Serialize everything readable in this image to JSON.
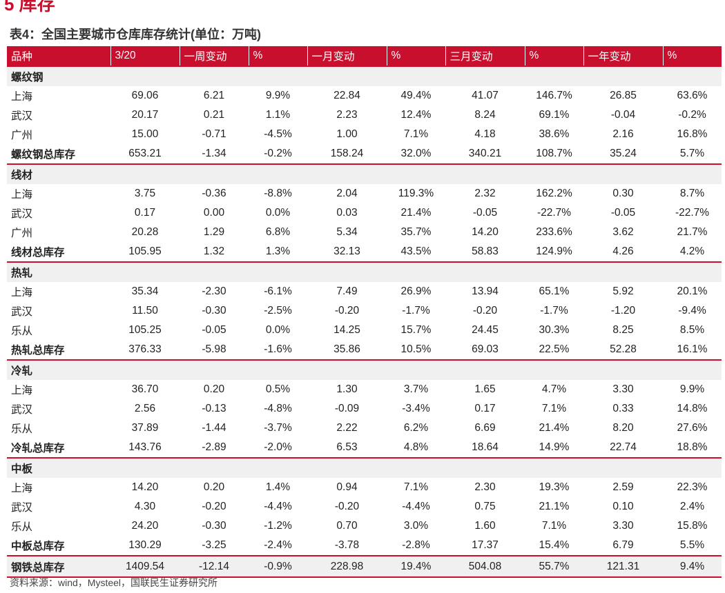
{
  "page": {
    "section_title": "5 库存",
    "caption": "表4：全国主要城市仓库库存统计(单位：万吨)",
    "source": "资料来源：wind，Mysteel，国联民生证券研究所"
  },
  "colors": {
    "accent": "#c8102e",
    "category_bg": "#f0f0f0"
  },
  "table": {
    "headers": [
      "品种",
      "3/20",
      "一周变动",
      "%",
      "一月变动",
      "%",
      "三月变动",
      "%",
      "一年变动",
      "%"
    ],
    "groups": [
      {
        "name": "螺纹钢",
        "rows": [
          [
            "上海",
            "69.06",
            "6.21",
            "9.9%",
            "22.84",
            "49.4%",
            "41.07",
            "146.7%",
            "26.85",
            "63.6%"
          ],
          [
            "武汉",
            "20.17",
            "0.21",
            "1.1%",
            "2.23",
            "12.4%",
            "8.24",
            "69.1%",
            "-0.04",
            "-0.2%"
          ],
          [
            "广州",
            "15.00",
            "-0.71",
            "-4.5%",
            "1.00",
            "7.1%",
            "4.18",
            "38.6%",
            "2.16",
            "16.8%"
          ]
        ],
        "total": [
          "螺纹钢总库存",
          "653.21",
          "-1.34",
          "-0.2%",
          "158.24",
          "32.0%",
          "340.21",
          "108.7%",
          "35.24",
          "5.7%"
        ]
      },
      {
        "name": "线材",
        "rows": [
          [
            "上海",
            "3.75",
            "-0.36",
            "-8.8%",
            "2.04",
            "119.3%",
            "2.32",
            "162.2%",
            "0.30",
            "8.7%"
          ],
          [
            "武汉",
            "0.17",
            "0.00",
            "0.0%",
            "0.03",
            "21.4%",
            "-0.05",
            "-22.7%",
            "-0.05",
            "-22.7%"
          ],
          [
            "广州",
            "20.28",
            "1.29",
            "6.8%",
            "5.34",
            "35.7%",
            "14.20",
            "233.6%",
            "3.62",
            "21.7%"
          ]
        ],
        "total": [
          "线材总库存",
          "105.95",
          "1.32",
          "1.3%",
          "32.13",
          "43.5%",
          "58.83",
          "124.9%",
          "4.26",
          "4.2%"
        ]
      },
      {
        "name": "热轧",
        "rows": [
          [
            "上海",
            "35.34",
            "-2.30",
            "-6.1%",
            "7.49",
            "26.9%",
            "13.94",
            "65.1%",
            "5.92",
            "20.1%"
          ],
          [
            "武汉",
            "11.50",
            "-0.30",
            "-2.5%",
            "-0.20",
            "-1.7%",
            "-0.20",
            "-1.7%",
            "-1.20",
            "-9.4%"
          ],
          [
            "乐从",
            "105.25",
            "-0.05",
            "0.0%",
            "14.25",
            "15.7%",
            "24.45",
            "30.3%",
            "8.25",
            "8.5%"
          ]
        ],
        "total": [
          "热轧总库存",
          "376.33",
          "-5.98",
          "-1.6%",
          "35.86",
          "10.5%",
          "69.03",
          "22.5%",
          "52.28",
          "16.1%"
        ]
      },
      {
        "name": "冷轧",
        "rows": [
          [
            "上海",
            "36.70",
            "0.20",
            "0.5%",
            "1.30",
            "3.7%",
            "1.65",
            "4.7%",
            "3.30",
            "9.9%"
          ],
          [
            "武汉",
            "2.56",
            "-0.13",
            "-4.8%",
            "-0.09",
            "-3.4%",
            "0.17",
            "7.1%",
            "0.33",
            "14.8%"
          ],
          [
            "乐从",
            "37.89",
            "-1.44",
            "-3.7%",
            "2.22",
            "6.2%",
            "6.69",
            "21.4%",
            "8.20",
            "27.6%"
          ]
        ],
        "total": [
          "冷轧总库存",
          "143.76",
          "-2.89",
          "-2.0%",
          "6.53",
          "4.8%",
          "18.64",
          "14.9%",
          "22.74",
          "18.8%"
        ]
      },
      {
        "name": "中板",
        "rows": [
          [
            "上海",
            "14.20",
            "0.20",
            "1.4%",
            "0.94",
            "7.1%",
            "2.30",
            "19.3%",
            "2.59",
            "22.3%"
          ],
          [
            "武汉",
            "4.30",
            "-0.20",
            "-4.4%",
            "-0.20",
            "-4.4%",
            "0.75",
            "21.1%",
            "0.10",
            "2.4%"
          ],
          [
            "乐从",
            "24.20",
            "-0.30",
            "-1.2%",
            "0.70",
            "3.0%",
            "1.60",
            "7.1%",
            "3.30",
            "15.8%"
          ]
        ],
        "total": [
          "中板总库存",
          "130.29",
          "-3.25",
          "-2.4%",
          "-3.78",
          "-2.8%",
          "17.37",
          "15.4%",
          "6.79",
          "5.5%"
        ]
      }
    ],
    "grand_total": [
      "钢铁总库存",
      "1409.54",
      "-12.14",
      "-0.9%",
      "228.98",
      "19.4%",
      "504.08",
      "55.7%",
      "121.31",
      "9.4%"
    ]
  }
}
